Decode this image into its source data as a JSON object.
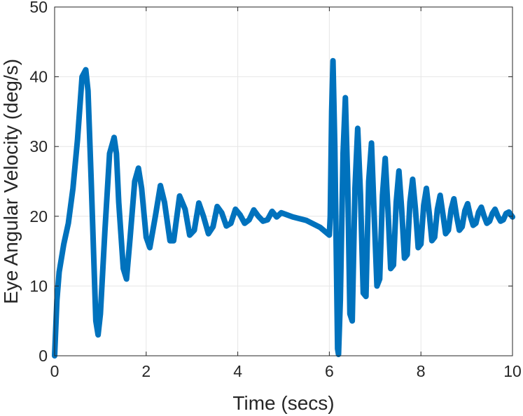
{
  "chart_data": {
    "type": "line",
    "title": "",
    "xlabel": "Time (secs)",
    "ylabel": "Eye Angular Velocity (deg/s)",
    "xlim": [
      0,
      10
    ],
    "ylim": [
      0,
      50
    ],
    "xticks": [
      0,
      2,
      4,
      6,
      8,
      10
    ],
    "yticks": [
      0,
      10,
      20,
      30,
      40,
      50
    ],
    "grid": true,
    "line_color": "#0072BD",
    "series": [
      {
        "name": "",
        "x": [
          0,
          0.05,
          0.1,
          0.2,
          0.3,
          0.4,
          0.5,
          0.6,
          0.68,
          0.73,
          0.8,
          0.9,
          0.95,
          1.0,
          1.1,
          1.2,
          1.3,
          1.35,
          1.4,
          1.5,
          1.57,
          1.65,
          1.75,
          1.83,
          1.9,
          2.0,
          2.08,
          2.2,
          2.31,
          2.4,
          2.52,
          2.6,
          2.73,
          2.85,
          2.95,
          3.05,
          3.15,
          3.25,
          3.36,
          3.46,
          3.55,
          3.65,
          3.75,
          3.85,
          3.95,
          4.05,
          4.15,
          4.25,
          4.35,
          4.45,
          4.55,
          4.65,
          4.75,
          4.85,
          4.95,
          5.2,
          5.5,
          5.8,
          6.0,
          6.02,
          6.05,
          6.08,
          6.12,
          6.18,
          6.2,
          6.24,
          6.3,
          6.35,
          6.4,
          6.45,
          6.5,
          6.56,
          6.62,
          6.68,
          6.74,
          6.8,
          6.86,
          6.92,
          6.98,
          7.04,
          7.1,
          7.16,
          7.22,
          7.28,
          7.34,
          7.4,
          7.46,
          7.52,
          7.58,
          7.64,
          7.7,
          7.76,
          7.82,
          7.88,
          7.94,
          8.0,
          8.06,
          8.12,
          8.18,
          8.24,
          8.3,
          8.36,
          8.42,
          8.48,
          8.54,
          8.6,
          8.66,
          8.72,
          8.78,
          8.84,
          8.9,
          8.96,
          9.02,
          9.08,
          9.14,
          9.2,
          9.26,
          9.32,
          9.38,
          9.44,
          9.5,
          9.56,
          9.62,
          9.68,
          9.74,
          9.8,
          9.86,
          9.92,
          10.0
        ],
        "y": [
          0,
          8,
          12,
          16,
          19,
          24,
          31,
          40,
          41,
          38,
          25,
          5,
          3,
          6,
          18,
          29,
          31.3,
          29,
          22,
          12.5,
          11,
          17,
          25,
          26.9,
          24,
          17,
          15.5,
          20,
          24.4,
          22,
          16.5,
          16.5,
          22.9,
          21,
          17.3,
          18,
          21.9,
          20,
          17.5,
          18.5,
          21.4,
          20.5,
          18.6,
          19,
          21,
          20.2,
          19,
          19.5,
          20.9,
          20,
          19.3,
          19.5,
          20.7,
          19.9,
          20.5,
          19.9,
          19.4,
          18.4,
          17.3,
          20,
          35,
          42.3,
          30,
          1,
          0.2,
          8,
          29,
          37,
          25,
          6,
          5,
          24,
          32.6,
          23,
          9,
          8.5,
          25,
          30.5,
          20,
          10,
          11,
          23,
          28.3,
          21,
          12.5,
          13,
          22,
          26.5,
          21,
          14,
          14.5,
          22,
          25.3,
          21,
          15.5,
          16,
          21.5,
          24,
          20.5,
          16.5,
          17,
          21,
          23,
          20.3,
          17.5,
          18,
          21,
          22.5,
          20,
          18,
          18.5,
          20.8,
          21.8,
          20,
          18.7,
          19,
          20.6,
          21.3,
          20,
          19,
          19.3,
          20.4,
          21,
          20,
          19.3,
          19.5,
          20.4,
          20.6,
          19.9
        ]
      }
    ]
  }
}
